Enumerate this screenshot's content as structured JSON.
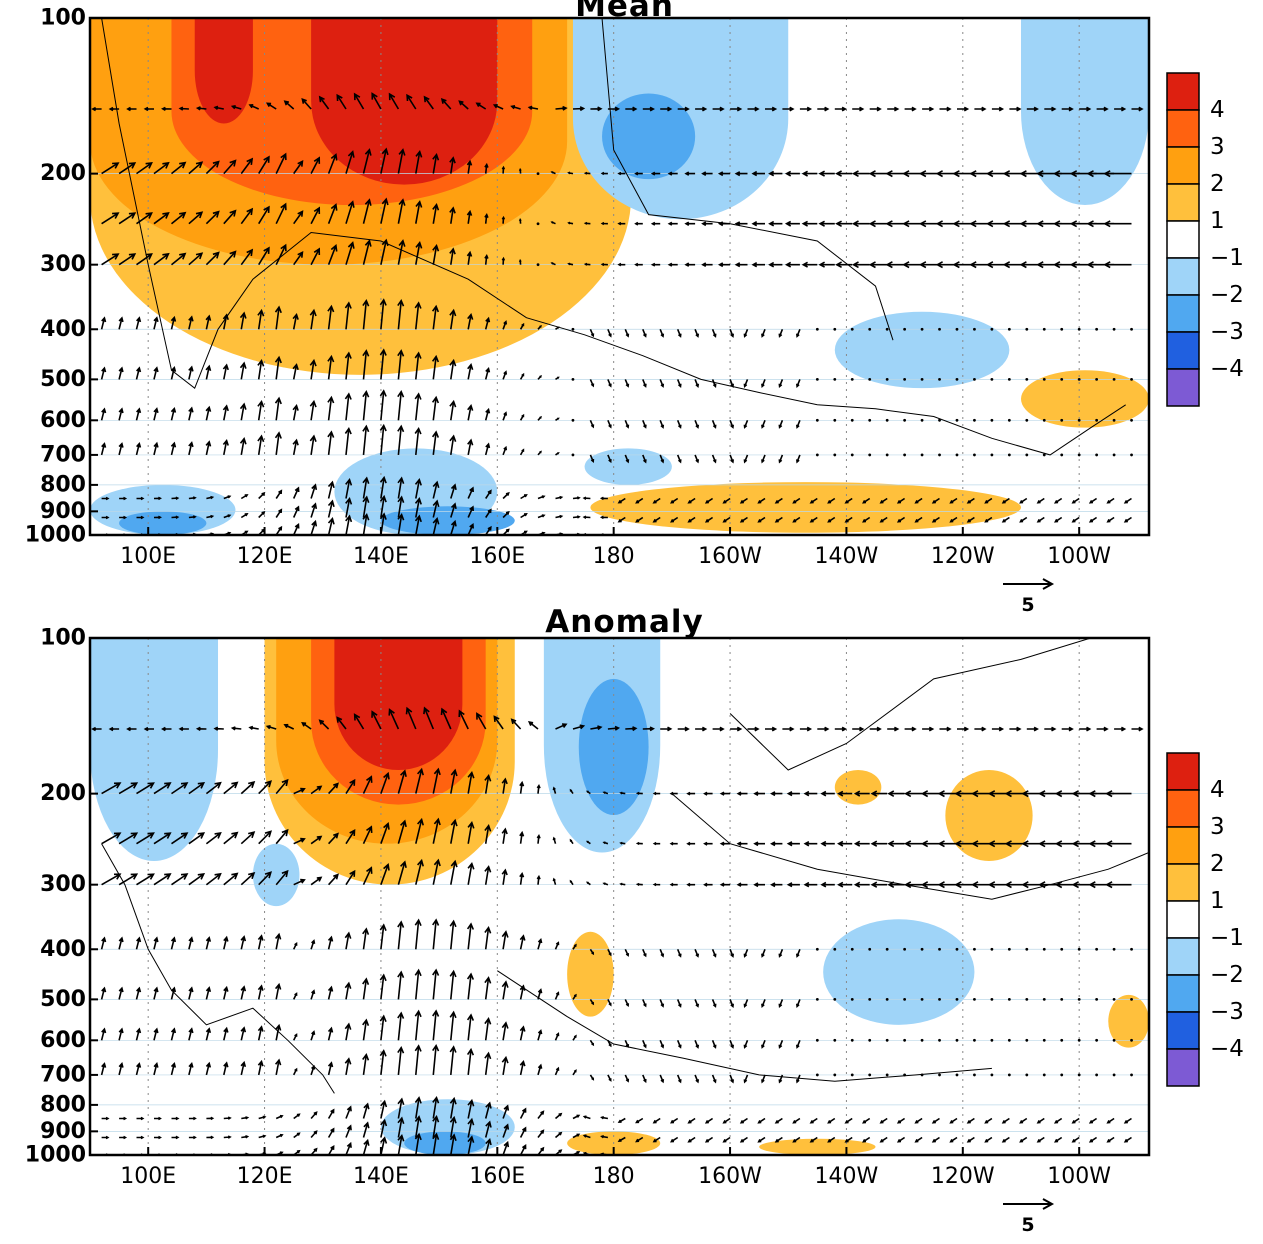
{
  "chart_data": [
    {
      "type": "heatmap",
      "title": "Mean",
      "overlay": "wind vectors and zero contour",
      "xlabel": "",
      "ylabel": "",
      "x_range_deg_east": [
        90,
        272
      ],
      "y_axis": "pressure (log scale, 1000 at bottom)",
      "y_ticks": [
        "100",
        "200",
        "300",
        "400",
        "500",
        "600",
        "700",
        "800",
        "900",
        "1000"
      ],
      "x_ticks": [
        "100E",
        "120E",
        "140E",
        "160E",
        "180",
        "160W",
        "140W",
        "120W",
        "100W"
      ],
      "reference_vector": "5",
      "colorbar": {
        "labels": [
          "4",
          "3",
          "2",
          "1",
          "−1",
          "−2",
          "−3",
          "−4"
        ],
        "colors": [
          "#dd2010",
          "#ff6210",
          "#ffa010",
          "#ffc03c",
          "#ffffff",
          "#9fd4f8",
          "#50a8f0",
          "#2060e0",
          "#7d5ad4"
        ]
      },
      "shaded_regions": [
        {
          "level": 1,
          "lon": [
            90,
            183
          ],
          "p": [
            100,
            490
          ]
        },
        {
          "level": 2,
          "lon": [
            90,
            172
          ],
          "p": [
            100,
            300
          ]
        },
        {
          "level": 3,
          "lon": [
            104,
            166
          ],
          "p": [
            100,
            230
          ]
        },
        {
          "level": 4,
          "lon": [
            108,
            118
          ],
          "p": [
            100,
            160
          ]
        },
        {
          "level": 4,
          "lon": [
            128,
            160
          ],
          "p": [
            100,
            210
          ]
        },
        {
          "level": 1,
          "lon": [
            250,
            272
          ],
          "p": [
            480,
            620
          ]
        },
        {
          "level": 1,
          "lon": [
            176,
            250
          ],
          "p": [
            790,
            990
          ]
        },
        {
          "level": -1,
          "lon": [
            173,
            210
          ],
          "p": [
            100,
            245
          ]
        },
        {
          "level": -2,
          "lon": [
            178,
            194
          ],
          "p": [
            140,
            205
          ]
        },
        {
          "level": -1,
          "lon": [
            250,
            272
          ],
          "p": [
            100,
            230
          ]
        },
        {
          "level": -1,
          "lon": [
            218,
            248
          ],
          "p": [
            370,
            520
          ]
        },
        {
          "level": -1,
          "lon": [
            132,
            160
          ],
          "p": [
            680,
            1000
          ]
        },
        {
          "level": -1,
          "lon": [
            90,
            115
          ],
          "p": [
            800,
            1000
          ]
        },
        {
          "level": -1,
          "lon": [
            175,
            190
          ],
          "p": [
            680,
            800
          ]
        },
        {
          "level": -2,
          "lon": [
            140,
            163
          ],
          "p": [
            880,
            1000
          ]
        },
        {
          "level": -2,
          "lon": [
            95,
            110
          ],
          "p": [
            900,
            1000
          ]
        }
      ]
    },
    {
      "type": "heatmap",
      "title": "Anomaly",
      "overlay": "wind vectors and zero contour",
      "xlabel": "",
      "ylabel": "",
      "x_range_deg_east": [
        90,
        272
      ],
      "y_axis": "pressure (log scale, 1000 at bottom)",
      "y_ticks": [
        "100",
        "200",
        "300",
        "400",
        "500",
        "600",
        "700",
        "800",
        "900",
        "1000"
      ],
      "x_ticks": [
        "100E",
        "120E",
        "140E",
        "160E",
        "180",
        "160W",
        "140W",
        "120W",
        "100W"
      ],
      "reference_vector": "5",
      "colorbar": {
        "labels": [
          "4",
          "3",
          "2",
          "1",
          "−1",
          "−2",
          "−3",
          "−4"
        ],
        "colors": [
          "#dd2010",
          "#ff6210",
          "#ffa010",
          "#ffc03c",
          "#ffffff",
          "#9fd4f8",
          "#50a8f0",
          "#2060e0",
          "#7d5ad4"
        ]
      },
      "shaded_regions": [
        {
          "level": 1,
          "lon": [
            120,
            163
          ],
          "p": [
            100,
            300
          ]
        },
        {
          "level": 2,
          "lon": [
            122,
            160
          ],
          "p": [
            100,
            250
          ]
        },
        {
          "level": 3,
          "lon": [
            128,
            158
          ],
          "p": [
            100,
            210
          ]
        },
        {
          "level": 4,
          "lon": [
            132,
            154
          ],
          "p": [
            100,
            180
          ]
        },
        {
          "level": 1,
          "lon": [
            172,
            180
          ],
          "p": [
            370,
            540
          ]
        },
        {
          "level": 1,
          "lon": [
            237,
            252
          ],
          "p": [
            180,
            270
          ]
        },
        {
          "level": 1,
          "lon": [
            218,
            226
          ],
          "p": [
            180,
            210
          ]
        },
        {
          "level": 1,
          "lon": [
            265,
            272
          ],
          "p": [
            490,
            620
          ]
        },
        {
          "level": 1,
          "lon": [
            172,
            188
          ],
          "p": [
            900,
            1000
          ]
        },
        {
          "level": 1,
          "lon": [
            205,
            225
          ],
          "p": [
            930,
            1000
          ]
        },
        {
          "level": -1,
          "lon": [
            90,
            112
          ],
          "p": [
            100,
            270
          ]
        },
        {
          "level": -1,
          "lon": [
            168,
            188
          ],
          "p": [
            100,
            260
          ]
        },
        {
          "level": -2,
          "lon": [
            174,
            186
          ],
          "p": [
            120,
            220
          ]
        },
        {
          "level": -1,
          "lon": [
            118,
            126
          ],
          "p": [
            250,
            330
          ]
        },
        {
          "level": -1,
          "lon": [
            216,
            242
          ],
          "p": [
            350,
            560
          ]
        },
        {
          "level": -1,
          "lon": [
            140,
            163
          ],
          "p": [
            780,
            1000
          ]
        },
        {
          "level": -2,
          "lon": [
            144,
            158
          ],
          "p": [
            900,
            1000
          ]
        }
      ]
    }
  ]
}
